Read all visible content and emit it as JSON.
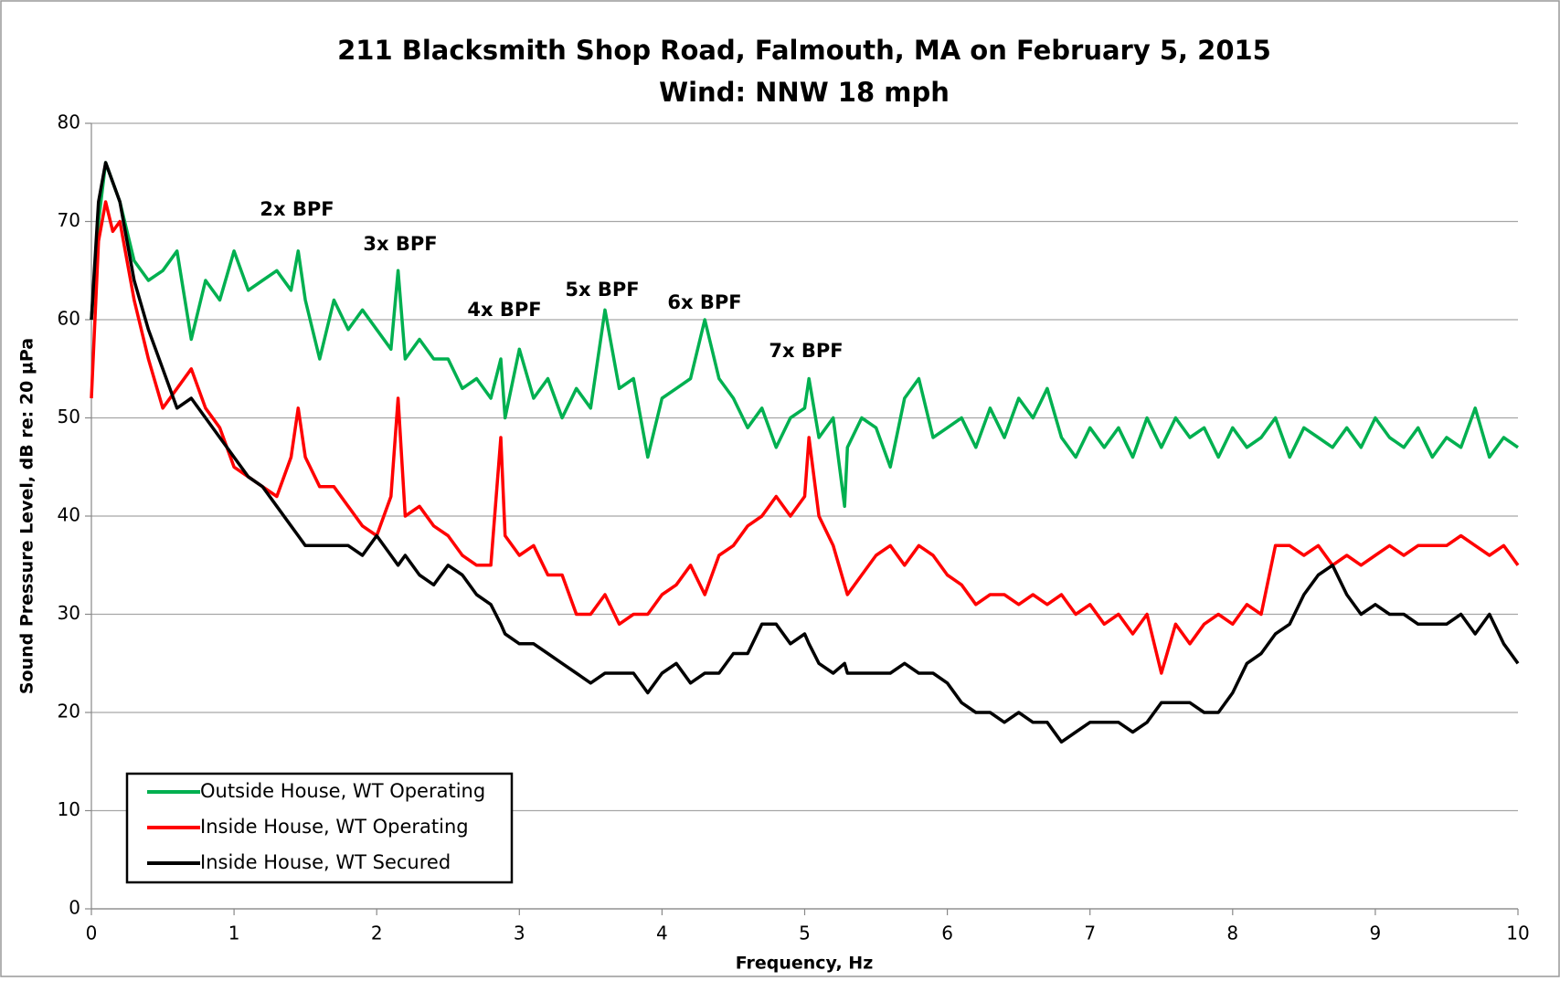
{
  "chart_data": {
    "type": "line",
    "title": "211 Blacksmith Shop Road, Falmouth, MA on February 5, 2015",
    "subtitle": "Wind: NNW 18 mph",
    "x_label": "Frequency, Hz",
    "y_label": "Sound Pressure Level, dB re: 20 µPa",
    "annotations": [
      "2x BPF",
      "3x BPF",
      "4x BPF",
      "5x BPF",
      "6x BPF",
      "7x BPF"
    ],
    "x": [
      0,
      0.05,
      0.1,
      0.15,
      0.2,
      0.3,
      0.4,
      0.5,
      0.6,
      0.7,
      0.8,
      0.9,
      1.0,
      1.1,
      1.2,
      1.3,
      1.4,
      1.45,
      1.5,
      1.6,
      1.7,
      1.8,
      1.9,
      2.0,
      2.1,
      2.15,
      2.2,
      2.3,
      2.4,
      2.5,
      2.6,
      2.7,
      2.8,
      2.87,
      2.9,
      3.0,
      3.1,
      3.2,
      3.3,
      3.4,
      3.5,
      3.6,
      3.7,
      3.8,
      3.9,
      4.0,
      4.1,
      4.2,
      4.3,
      4.4,
      4.5,
      4.6,
      4.7,
      4.8,
      4.9,
      5.0,
      5.03,
      5.1,
      5.2,
      5.28,
      5.3,
      5.4,
      5.5,
      5.6,
      5.7,
      5.8,
      5.9,
      6.0,
      6.1,
      6.2,
      6.3,
      6.4,
      6.5,
      6.6,
      6.7,
      6.8,
      6.9,
      7.0,
      7.1,
      7.2,
      7.3,
      7.4,
      7.5,
      7.6,
      7.7,
      7.8,
      7.9,
      8.0,
      8.1,
      8.2,
      8.3,
      8.4,
      8.5,
      8.6,
      8.7,
      8.8,
      8.9,
      9.0,
      9.1,
      9.2,
      9.3,
      9.4,
      9.5,
      9.6,
      9.7,
      9.8,
      9.9,
      10
    ],
    "series": [
      {
        "name": "Outside House, WT Operating",
        "color": "#00b050",
        "values": [
          60,
          70,
          76,
          74,
          72,
          66,
          64,
          65,
          67,
          58,
          64,
          62,
          67,
          63,
          64,
          65,
          63,
          67,
          62,
          56,
          62,
          59,
          61,
          59,
          57,
          65,
          56,
          58,
          56,
          56,
          53,
          54,
          52,
          56,
          50,
          57,
          52,
          54,
          50,
          53,
          51,
          61,
          53,
          54,
          46,
          52,
          53,
          54,
          60,
          54,
          52,
          49,
          51,
          47,
          50,
          51,
          54,
          48,
          50,
          41,
          47,
          50,
          49,
          45,
          52,
          54,
          48,
          49,
          50,
          47,
          51,
          48,
          52,
          50,
          53,
          48,
          46,
          49,
          47,
          49,
          46,
          50,
          47,
          50,
          48,
          49,
          46,
          49,
          47,
          48,
          50,
          46,
          49,
          48,
          47,
          49,
          47,
          50,
          48,
          47,
          49,
          46,
          48,
          47,
          51,
          46,
          48,
          47
        ]
      },
      {
        "name": "Inside House, WT Operating",
        "color": "#ff0000",
        "values": [
          52,
          68,
          72,
          69,
          70,
          62,
          56,
          51,
          53,
          55,
          51,
          49,
          45,
          44,
          43,
          42,
          46,
          51,
          46,
          43,
          43,
          41,
          39,
          38,
          42,
          52,
          40,
          41,
          39,
          38,
          36,
          35,
          35,
          48,
          38,
          36,
          37,
          34,
          34,
          30,
          30,
          32,
          29,
          30,
          30,
          32,
          33,
          35,
          32,
          36,
          37,
          39,
          40,
          42,
          40,
          42,
          48,
          40,
          37,
          33,
          32,
          34,
          36,
          37,
          35,
          37,
          36,
          34,
          33,
          31,
          32,
          32,
          31,
          32,
          31,
          32,
          30,
          31,
          29,
          30,
          28,
          30,
          24,
          29,
          27,
          29,
          30,
          29,
          31,
          30,
          37,
          37,
          36,
          37,
          35,
          36,
          35,
          36,
          37,
          36,
          37,
          37,
          37,
          38,
          37,
          36,
          37,
          35
        ]
      },
      {
        "name": "Inside House, WT Secured",
        "color": "#000000",
        "values": [
          60,
          72,
          76,
          74,
          72,
          64,
          59,
          55,
          51,
          52,
          50,
          48,
          46,
          44,
          43,
          41,
          39,
          38,
          37,
          37,
          37,
          37,
          36,
          38,
          36,
          35,
          36,
          34,
          33,
          35,
          34,
          32,
          31,
          29,
          28,
          27,
          27,
          26,
          25,
          24,
          23,
          24,
          24,
          24,
          22,
          24,
          25,
          23,
          24,
          24,
          26,
          26,
          29,
          29,
          27,
          28,
          27,
          25,
          24,
          25,
          24,
          24,
          24,
          24,
          25,
          24,
          24,
          23,
          21,
          20,
          20,
          19,
          20,
          19,
          19,
          17,
          18,
          19,
          19,
          19,
          18,
          19,
          21,
          21,
          21,
          20,
          20,
          22,
          25,
          26,
          28,
          29,
          32,
          34,
          35,
          32,
          30,
          31,
          30,
          30,
          29,
          29,
          29,
          30,
          28,
          30,
          27,
          25
        ]
      }
    ],
    "xlim": [
      0,
      10
    ],
    "xticks": [
      0,
      1,
      2,
      3,
      4,
      5,
      6,
      7,
      8,
      9,
      10
    ],
    "ylim": [
      0,
      80
    ],
    "yticks": [
      0,
      10,
      20,
      30,
      40,
      50,
      60,
      70,
      80
    ],
    "grid": true,
    "legend": "lower left"
  }
}
